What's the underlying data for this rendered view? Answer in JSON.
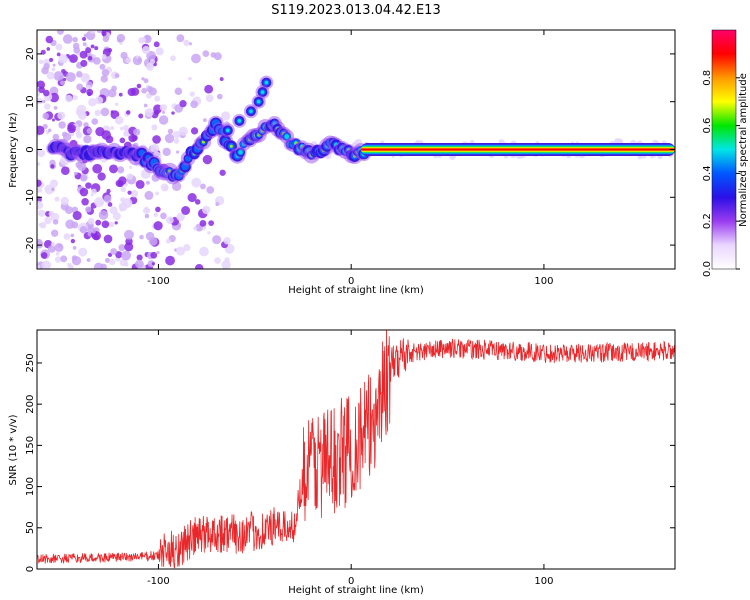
{
  "title": "S119.2023.013.04.42.E13",
  "chart_data": [
    {
      "type": "heatmap",
      "title": "",
      "xlabel": "Height of straight line (km)",
      "ylabel": "Frequency (Hz)",
      "xlim": [
        -163,
        168
      ],
      "ylim": [
        -25,
        25
      ],
      "x_ticks": [
        -100,
        0,
        100
      ],
      "y_ticks": [
        -20,
        -10,
        0,
        10,
        20
      ],
      "colorbar": {
        "label": "Normalized spectral amplitude",
        "range": [
          0,
          1
        ],
        "ticks": [
          "0.0",
          "0.2",
          "0.4",
          "0.6",
          "0.8"
        ],
        "colors": [
          "#ffffff",
          "#ead6ff",
          "#9a3cf0",
          "#2b0fe6",
          "#0057ff",
          "#00e6e6",
          "#00e600",
          "#ffff00",
          "#ff9900",
          "#ff0000",
          "#ff006a"
        ]
      },
      "ridge": {
        "description_points": [
          [
            -150,
            0
          ],
          [
            -140,
            -1
          ],
          [
            -130,
            0
          ],
          [
            -120,
            -1
          ],
          [
            -110,
            -1
          ],
          [
            -100,
            -4
          ],
          [
            -90,
            -6
          ],
          [
            -85,
            -2
          ],
          [
            -80,
            0
          ],
          [
            -75,
            3
          ],
          [
            -70,
            5
          ],
          [
            -65,
            2
          ],
          [
            -60,
            -1
          ],
          [
            -55,
            1
          ],
          [
            -50,
            3
          ],
          [
            -45,
            4
          ],
          [
            -40,
            5
          ],
          [
            -35,
            3
          ],
          [
            -30,
            1
          ],
          [
            -25,
            0
          ],
          [
            -20,
            -1
          ],
          [
            -15,
            0
          ],
          [
            -10,
            2
          ],
          [
            -5,
            0
          ],
          [
            0,
            -1
          ],
          [
            10,
            0
          ],
          [
            168,
            0
          ]
        ],
        "branch_points": [
          [
            -44,
            14
          ],
          [
            -46,
            12
          ],
          [
            -48,
            10
          ],
          [
            -52,
            8
          ],
          [
            -58,
            6
          ],
          [
            -64,
            4
          ]
        ]
      }
    },
    {
      "type": "line",
      "title": "",
      "xlabel": "Height of straight line (km)",
      "ylabel": "SNR (10 * v/v)",
      "xlim": [
        -163,
        168
      ],
      "ylim": [
        0,
        290
      ],
      "x_ticks": [
        -100,
        0,
        100
      ],
      "y_ticks": [
        0,
        50,
        100,
        150,
        200,
        250
      ],
      "color": "#e8272a",
      "trend": {
        "x": [
          -163,
          -120,
          -100,
          -90,
          -80,
          -70,
          -60,
          -50,
          -40,
          -30,
          -25,
          -20,
          -10,
          0,
          10,
          15,
          20,
          25,
          30,
          50,
          80,
          100,
          130,
          168
        ],
        "y": [
          12,
          14,
          16,
          25,
          40,
          45,
          42,
          45,
          50,
          50,
          110,
          130,
          130,
          150,
          170,
          210,
          240,
          258,
          262,
          268,
          265,
          262,
          262,
          265
        ]
      }
    }
  ]
}
